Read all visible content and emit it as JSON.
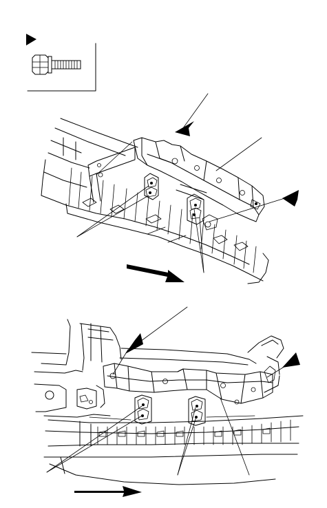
{
  "figure": {
    "icons": {
      "callout_marker": "filled-triangle-pointer-icon",
      "fastener": "flange-bolt-icon",
      "direction": "forward-arrow-icon"
    },
    "colors": {
      "line": "#000000",
      "background": "#ffffff"
    }
  }
}
